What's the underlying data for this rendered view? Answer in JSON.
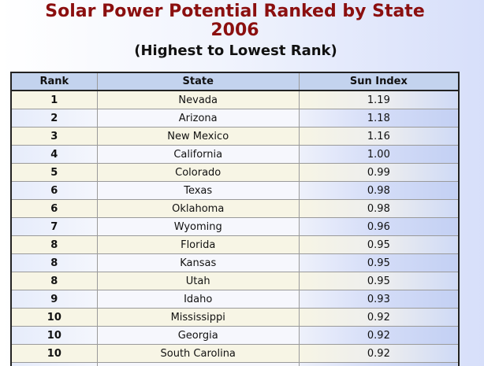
{
  "title_line1": "Solar Power Potential Ranked by State",
  "title_line2": "2006",
  "subtitle": "(Highest to Lowest Rank)",
  "table": {
    "headers": [
      "Rank",
      "State",
      "Sun Index"
    ],
    "rows": [
      {
        "rank": "1",
        "state": "Nevada",
        "sun_index": "1.19"
      },
      {
        "rank": "2",
        "state": "Arizona",
        "sun_index": "1.18"
      },
      {
        "rank": "3",
        "state": "New Mexico",
        "sun_index": "1.16"
      },
      {
        "rank": "4",
        "state": "California",
        "sun_index": "1.00"
      },
      {
        "rank": "5",
        "state": "Colorado",
        "sun_index": "0.99"
      },
      {
        "rank": "6",
        "state": "Texas",
        "sun_index": "0.98"
      },
      {
        "rank": "6",
        "state": "Oklahoma",
        "sun_index": "0.98"
      },
      {
        "rank": "7",
        "state": "Wyoming",
        "sun_index": "0.96"
      },
      {
        "rank": "8",
        "state": "Florida",
        "sun_index": "0.95"
      },
      {
        "rank": "8",
        "state": "Kansas",
        "sun_index": "0.95"
      },
      {
        "rank": "8",
        "state": "Utah",
        "sun_index": "0.95"
      },
      {
        "rank": "9",
        "state": "Idaho",
        "sun_index": "0.93"
      },
      {
        "rank": "10",
        "state": "Mississippi",
        "sun_index": "0.92"
      },
      {
        "rank": "10",
        "state": "Georgia",
        "sun_index": "0.92"
      },
      {
        "rank": "10",
        "state": "South Carolina",
        "sun_index": "0.92"
      }
    ]
  }
}
